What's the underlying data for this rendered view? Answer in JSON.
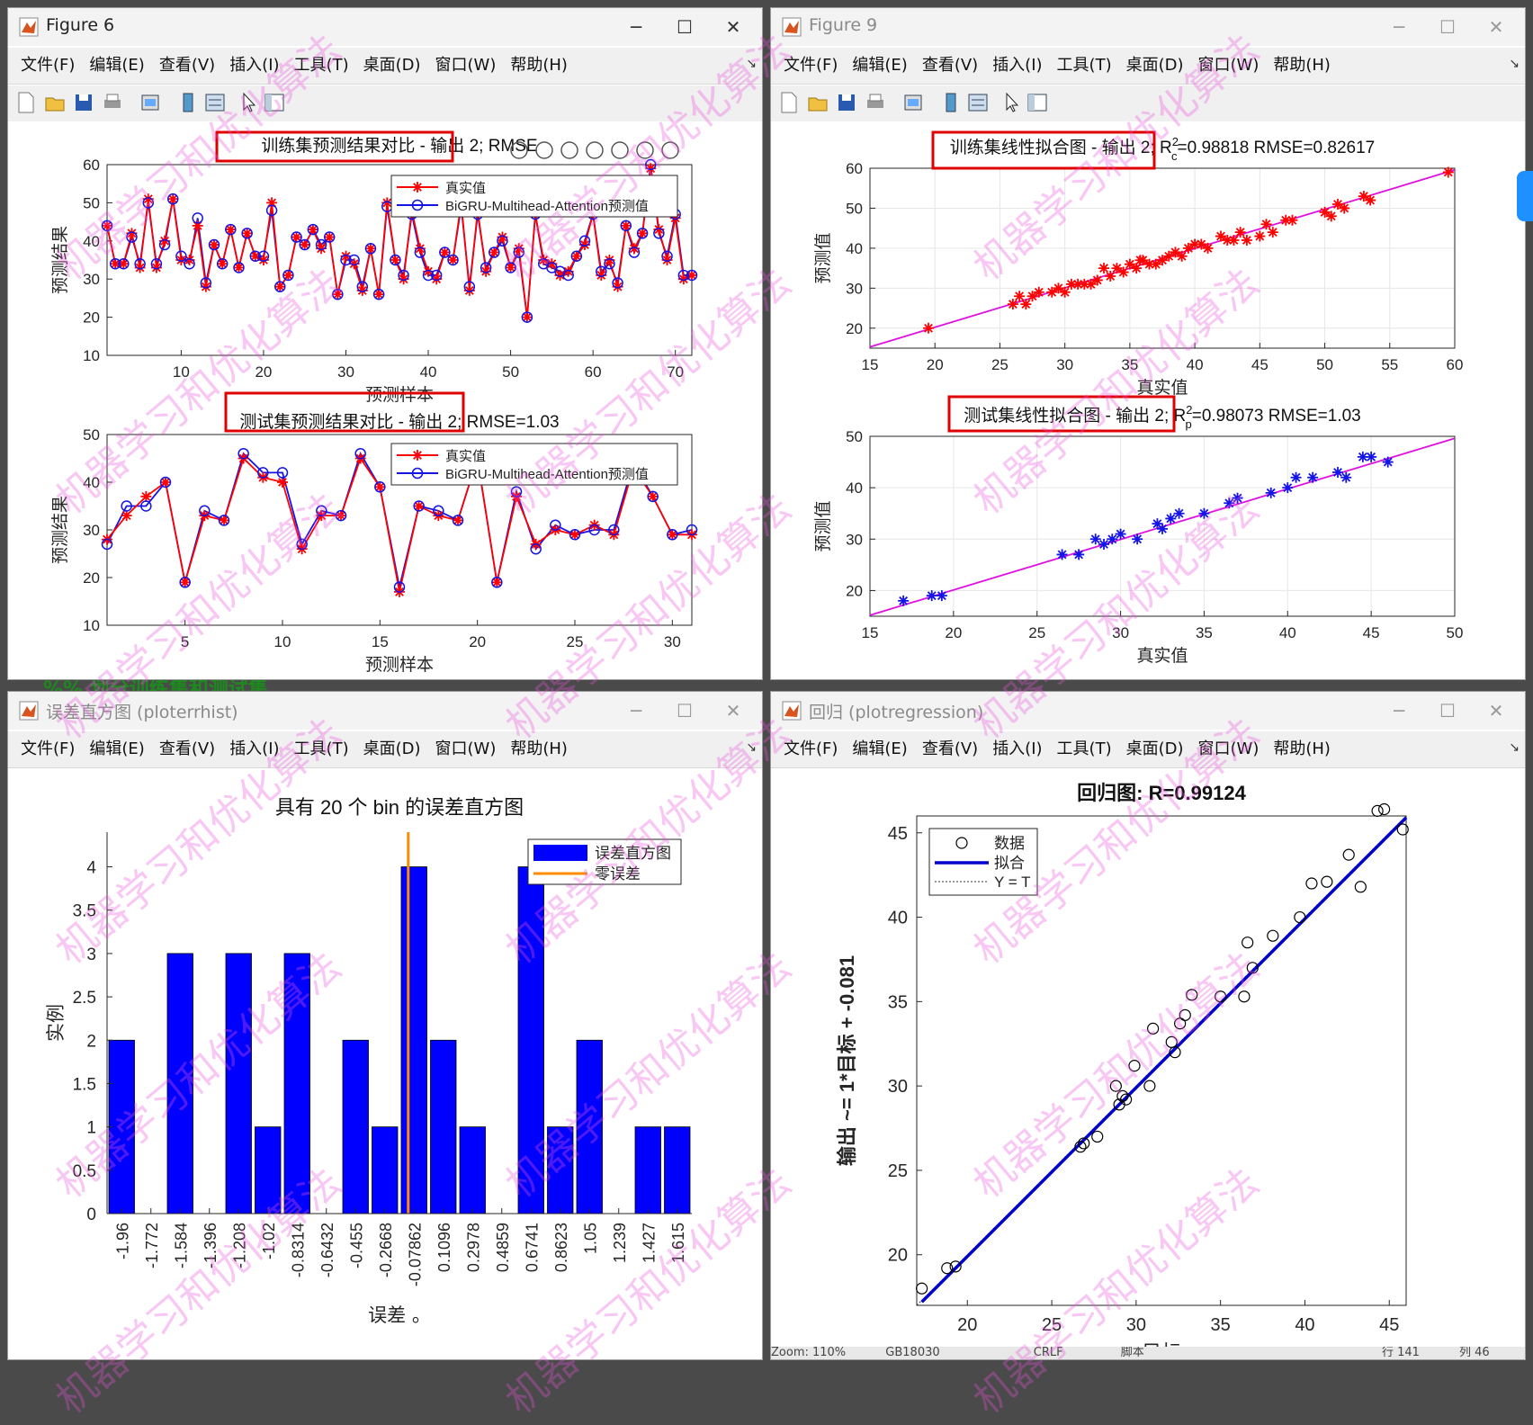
{
  "windows": [
    {
      "title": "Figure 6"
    },
    {
      "title": "Figure 9"
    },
    {
      "title": "误差直方图 (ploterrhist)"
    },
    {
      "title": "回归 (plotregression)"
    }
  ],
  "menu": [
    "文件(F)",
    "编辑(E)",
    "查看(V)",
    "插入(I)",
    "工具(T)",
    "桌面(D)",
    "窗口(W)",
    "帮助(H)"
  ],
  "watermark": "机器学习和优化算法",
  "background_text": "%%  划分训练集和测试集",
  "statusbar": {
    "zoom": "Zoom: 110%",
    "encoding": "GB18030",
    "eol": "CRLF",
    "type": "脚本",
    "row": "行 141",
    "col": "列 46"
  },
  "chart_data": [
    {
      "type": "line",
      "title": "训练集预测结果对比 - 输出 2; RMSE",
      "xlabel": "预测样本",
      "ylabel": "预测结果",
      "xlim": [
        1,
        72
      ],
      "ylim": [
        10,
        60
      ],
      "xticks": [
        10,
        20,
        30,
        40,
        50,
        60,
        70
      ],
      "yticks": [
        10,
        20,
        30,
        40,
        50,
        60
      ],
      "legend": [
        "真实值",
        "BiGRU-Multihead-Attention预测值"
      ],
      "colors": {
        "actual": "#ff0000",
        "predicted": "#1414e6"
      },
      "x": [
        1,
        2,
        3,
        4,
        5,
        6,
        7,
        8,
        9,
        10,
        11,
        12,
        13,
        14,
        15,
        16,
        17,
        18,
        19,
        20,
        21,
        22,
        23,
        24,
        25,
        26,
        27,
        28,
        29,
        30,
        31,
        32,
        33,
        34,
        35,
        36,
        37,
        38,
        39,
        40,
        41,
        42,
        43,
        44,
        45,
        46,
        47,
        48,
        49,
        50,
        51,
        52,
        53,
        54,
        55,
        56,
        57,
        58,
        59,
        60,
        61,
        62,
        63,
        64,
        65,
        66,
        67,
        68,
        69,
        70,
        71,
        72
      ],
      "series": [
        {
          "name": "真实值",
          "values": [
            44,
            34,
            34,
            42,
            33,
            51,
            33,
            40,
            51,
            35,
            35,
            44,
            28,
            39,
            34,
            43,
            33,
            42,
            36,
            35,
            50,
            28,
            31,
            41,
            39,
            43,
            38,
            41,
            26,
            36,
            34,
            27,
            38,
            26,
            50,
            35,
            30,
            48,
            38,
            32,
            30,
            37,
            35,
            50,
            27,
            48,
            32,
            37,
            41,
            33,
            38,
            20,
            47,
            35,
            34,
            31,
            32,
            36,
            39,
            47,
            31,
            35,
            28,
            44,
            38,
            42,
            59,
            43,
            35,
            46,
            30,
            31
          ]
        },
        {
          "name": "BiGRU-Multihead-Attention预测值",
          "values": [
            44,
            34,
            34,
            41,
            34,
            50,
            34,
            39,
            51,
            36,
            34,
            46,
            29,
            39,
            34,
            43,
            33,
            42,
            36,
            36,
            48,
            28,
            31,
            41,
            39,
            43,
            39,
            41,
            26,
            35,
            35,
            28,
            38,
            26,
            49,
            35,
            31,
            47,
            37,
            31,
            31,
            37,
            35,
            49,
            28,
            47,
            33,
            37,
            40,
            33,
            37,
            20,
            47,
            34,
            33,
            32,
            31,
            36,
            40,
            47,
            32,
            34,
            29,
            44,
            37,
            42,
            60,
            42,
            36,
            47,
            31,
            31
          ]
        }
      ]
    },
    {
      "type": "line",
      "title": "测试集预测结果对比 - 输出 2; RMSE=1.03",
      "xlabel": "预测样本",
      "ylabel": "预测结果",
      "xlim": [
        1,
        31
      ],
      "ylim": [
        10,
        50
      ],
      "xticks": [
        5,
        10,
        15,
        20,
        25,
        30
      ],
      "yticks": [
        10,
        20,
        30,
        40,
        50
      ],
      "legend": [
        "真实值",
        "BiGRU-Multihead-Attention预测值"
      ],
      "colors": {
        "actual": "#ff0000",
        "predicted": "#1414e6"
      },
      "x": [
        1,
        2,
        3,
        4,
        5,
        6,
        7,
        8,
        9,
        10,
        11,
        12,
        13,
        14,
        15,
        16,
        17,
        18,
        19,
        20,
        21,
        22,
        23,
        24,
        25,
        26,
        27,
        28,
        29,
        30,
        31
      ],
      "series": [
        {
          "name": "真实值",
          "values": [
            28,
            33,
            37,
            40,
            19,
            33,
            32,
            45,
            41,
            40,
            26,
            33,
            33,
            45,
            39,
            17,
            35,
            33,
            32,
            45,
            19,
            37,
            27,
            30,
            29,
            31,
            29,
            43,
            37,
            29,
            29
          ]
        },
        {
          "name": "BiGRU-Multihead-Attention预测值",
          "values": [
            27,
            35,
            35,
            40,
            19,
            34,
            32,
            46,
            42,
            42,
            27,
            34,
            33,
            46,
            39,
            18,
            35,
            34,
            32,
            45,
            19,
            38,
            26,
            31,
            29,
            30,
            30,
            44,
            37,
            29,
            30
          ]
        }
      ]
    },
    {
      "type": "scatter",
      "title": "训练集线性拟合图 - 输出 2; R",
      "title_sup": "2",
      "title_sub": "c",
      "title_rest": "=0.98818  RMSE=0.82617",
      "xlabel": "真实值",
      "ylabel": "预测值",
      "xlim": [
        15,
        60
      ],
      "ylim": [
        15,
        60
      ],
      "xticks": [
        15,
        20,
        25,
        30,
        35,
        40,
        45,
        50,
        55,
        60
      ],
      "yticks": [
        20,
        30,
        40,
        50,
        60
      ],
      "colors": {
        "points": "#ff0000",
        "fit": "#e010e0"
      },
      "points": [
        [
          19.5,
          20
        ],
        [
          26,
          26
        ],
        [
          26.5,
          28
        ],
        [
          27,
          26
        ],
        [
          27.5,
          28
        ],
        [
          28,
          29
        ],
        [
          29,
          29
        ],
        [
          29.5,
          30
        ],
        [
          30,
          29
        ],
        [
          30.5,
          31
        ],
        [
          31,
          31
        ],
        [
          31.5,
          31
        ],
        [
          32,
          31
        ],
        [
          32.5,
          32
        ],
        [
          33,
          35
        ],
        [
          33.5,
          33
        ],
        [
          34,
          35
        ],
        [
          34.5,
          34
        ],
        [
          35,
          36
        ],
        [
          35.5,
          35
        ],
        [
          35.8,
          37
        ],
        [
          36,
          37
        ],
        [
          36.5,
          36
        ],
        [
          37,
          36
        ],
        [
          37.5,
          37
        ],
        [
          38,
          38
        ],
        [
          38.5,
          39
        ],
        [
          39,
          38
        ],
        [
          39.5,
          40
        ],
        [
          40,
          41
        ],
        [
          40.5,
          41
        ],
        [
          41,
          40
        ],
        [
          42,
          43
        ],
        [
          42.5,
          42
        ],
        [
          43,
          42
        ],
        [
          43.5,
          44
        ],
        [
          44,
          42
        ],
        [
          45,
          43
        ],
        [
          45.5,
          46
        ],
        [
          46,
          44
        ],
        [
          47,
          47
        ],
        [
          47.5,
          47
        ],
        [
          50,
          49
        ],
        [
          50.5,
          48
        ],
        [
          51,
          51
        ],
        [
          51.5,
          50
        ],
        [
          53,
          53
        ],
        [
          53.5,
          52
        ],
        [
          59.5,
          59
        ]
      ],
      "fit": [
        [
          15,
          15.3
        ],
        [
          60,
          59.6
        ]
      ]
    },
    {
      "type": "scatter",
      "title": "测试集线性拟合图 - 输出 2; R",
      "title_sup": "2",
      "title_sub": "p",
      "title_rest": "=0.98073  RMSE=1.03",
      "xlabel": "真实值",
      "ylabel": "预测值",
      "xlim": [
        15,
        50
      ],
      "ylim": [
        15,
        50
      ],
      "xticks": [
        15,
        20,
        25,
        30,
        35,
        40,
        45,
        50
      ],
      "yticks": [
        20,
        30,
        40,
        50
      ],
      "colors": {
        "points": "#1414e6",
        "fit": "#e010e0"
      },
      "points": [
        [
          17,
          18
        ],
        [
          18.7,
          19
        ],
        [
          19.3,
          19
        ],
        [
          26.5,
          27
        ],
        [
          27.5,
          27
        ],
        [
          28.5,
          30
        ],
        [
          29,
          29
        ],
        [
          29.5,
          30
        ],
        [
          30,
          31
        ],
        [
          31,
          30
        ],
        [
          32.2,
          33
        ],
        [
          32.5,
          32
        ],
        [
          33,
          34
        ],
        [
          33.5,
          35
        ],
        [
          35,
          35
        ],
        [
          36.5,
          37
        ],
        [
          37,
          38
        ],
        [
          39,
          39
        ],
        [
          40,
          40
        ],
        [
          40.5,
          42
        ],
        [
          41.5,
          42
        ],
        [
          43,
          43
        ],
        [
          43.5,
          42
        ],
        [
          44.5,
          46
        ],
        [
          45,
          46
        ],
        [
          46,
          45
        ]
      ],
      "fit": [
        [
          15,
          15.2
        ],
        [
          50,
          49.6
        ]
      ]
    },
    {
      "type": "bar",
      "title": "具有 20 个 bin 的误差直方图",
      "xlabel": "误差 。",
      "ylabel": "实例",
      "categories": [
        "-1.96",
        "-1.772",
        "-1.584",
        "-1.396",
        "-1.208",
        "-1.02",
        "-0.8314",
        "-0.6432",
        "-0.455",
        "-0.2668",
        "-0.07862",
        "0.1096",
        "0.2978",
        "0.4859",
        "0.6741",
        "0.8623",
        "1.05",
        "1.239",
        "1.427",
        "1.615"
      ],
      "values": [
        2,
        0,
        3,
        0,
        3,
        1,
        3,
        0,
        2,
        1,
        4,
        2,
        1,
        0,
        4,
        1,
        2,
        0,
        1,
        1
      ],
      "ylim": [
        0,
        4.4
      ],
      "yticks": [
        "0",
        "0.5",
        "1",
        "1.5",
        "2",
        "2.5",
        "3",
        "3.5",
        "4"
      ],
      "zero_error_index": 10.3,
      "legend": [
        "误差直方图",
        "零误差"
      ],
      "colors": {
        "bars": "#0000ff",
        "zero": "#ff8c00"
      }
    },
    {
      "type": "scatter",
      "title": "回归图: R=0.99124",
      "xlabel": "目标",
      "ylabel": "输出 ~= 1*目标 + -0.081",
      "xlim": [
        17,
        46
      ],
      "ylim": [
        17,
        46
      ],
      "xticks": [
        20,
        25,
        30,
        35,
        40,
        45
      ],
      "yticks": [
        20,
        25,
        30,
        35,
        40,
        45
      ],
      "legend": [
        "数据",
        "拟合",
        "Y = T"
      ],
      "colors": {
        "fit": "#0000cc",
        "identity": "#333333",
        "points": "#000000"
      },
      "points": [
        [
          17.3,
          18
        ],
        [
          18.8,
          19.2
        ],
        [
          19.3,
          19.3
        ],
        [
          26.7,
          26.4
        ],
        [
          26.9,
          26.6
        ],
        [
          27.7,
          27
        ],
        [
          28.8,
          30
        ],
        [
          29,
          28.9
        ],
        [
          29.2,
          29.4
        ],
        [
          29.4,
          29.2
        ],
        [
          29.9,
          31.2
        ],
        [
          30.8,
          30
        ],
        [
          31,
          33.4
        ],
        [
          32.1,
          32.6
        ],
        [
          32.3,
          32
        ],
        [
          32.6,
          33.7
        ],
        [
          32.9,
          34.2
        ],
        [
          33.3,
          35.4
        ],
        [
          35,
          35.3
        ],
        [
          36.4,
          35.3
        ],
        [
          36.6,
          38.5
        ],
        [
          36.9,
          37
        ],
        [
          38.1,
          38.9
        ],
        [
          39.7,
          40
        ],
        [
          40.4,
          42
        ],
        [
          41.3,
          42.1
        ],
        [
          42.6,
          43.7
        ],
        [
          43.3,
          41.8
        ],
        [
          44.3,
          46.3
        ],
        [
          44.7,
          46.4
        ],
        [
          45.8,
          45.2
        ]
      ],
      "fit": [
        [
          17.3,
          17.2
        ],
        [
          46,
          45.9
        ]
      ]
    }
  ]
}
